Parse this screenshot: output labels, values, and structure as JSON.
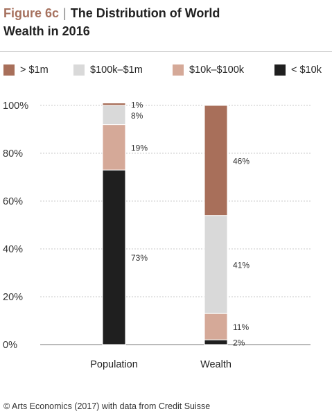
{
  "title": {
    "figure_label": "Figure 6c",
    "text_line1": "The Distribution of World",
    "text_line2": "Wealth in 2016"
  },
  "source": "© Arts Economics (2017) with data from Credit Suisse",
  "colors": {
    "gt_1m": "#a86f5a",
    "k100_1m": "#d9d9d9",
    "k10_100k": "#d5a998",
    "lt_10k": "#1f1f1f"
  },
  "chart_data": {
    "type": "bar",
    "stacked": true,
    "categories": [
      "Population",
      "Wealth"
    ],
    "series": [
      {
        "name": "< $10k",
        "values": [
          73,
          2
        ],
        "labels": [
          "73%",
          "2%"
        ],
        "color": "#1f1f1f"
      },
      {
        "name": "$10k–$100k",
        "values": [
          19,
          11
        ],
        "labels": [
          "19%",
          "11%"
        ],
        "color": "#d5a998"
      },
      {
        "name": "$100k–$1m",
        "values": [
          8,
          41
        ],
        "labels": [
          "8%",
          "41%"
        ],
        "color": "#d9d9d9"
      },
      {
        "name": "> $1m",
        "values": [
          1,
          46
        ],
        "labels": [
          "1%",
          "46%"
        ],
        "color": "#a86f5a"
      }
    ],
    "legend_order": [
      "> $1m",
      "$100k–$1m",
      "$10k–$100k",
      "< $10k"
    ],
    "legend_position": "top",
    "y_ticks": [
      "0%",
      "20%",
      "40%",
      "60%",
      "80%",
      "100%"
    ],
    "y_tick_values": [
      0,
      20,
      40,
      60,
      80,
      100
    ],
    "ylim": [
      0,
      100
    ],
    "grid": true
  }
}
